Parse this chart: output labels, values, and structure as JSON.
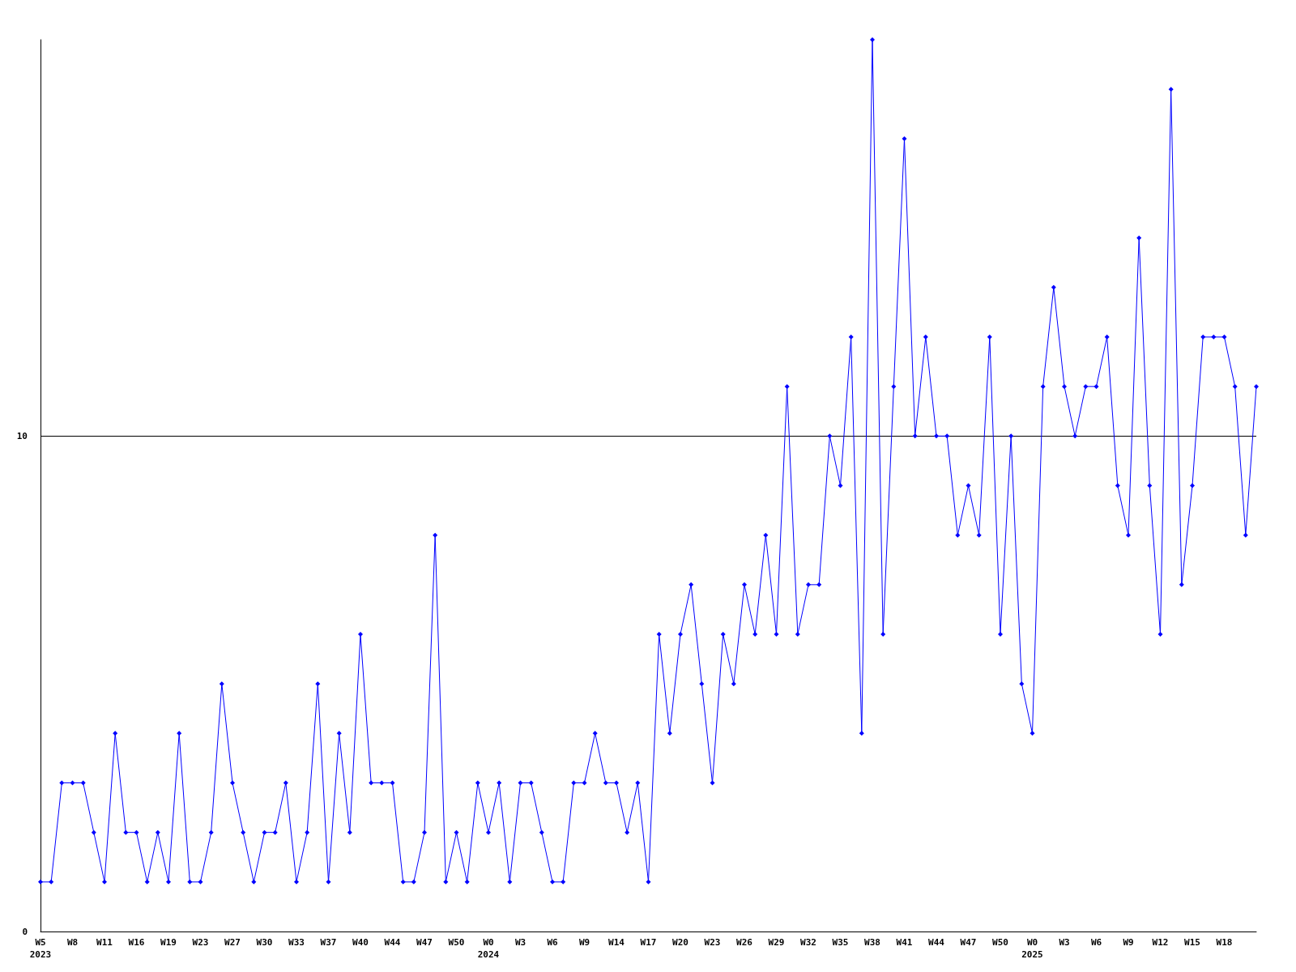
{
  "chart_data": {
    "type": "line",
    "categories": [
      "W5\n2023",
      null,
      null,
      "W8",
      null,
      null,
      "W11",
      null,
      null,
      "W16",
      null,
      null,
      "W19",
      null,
      null,
      "W23",
      null,
      null,
      "W27",
      null,
      null,
      "W30",
      null,
      null,
      "W33",
      null,
      null,
      "W37",
      null,
      null,
      "W40",
      null,
      null,
      "W44",
      null,
      null,
      "W47",
      null,
      null,
      "W50",
      null,
      null,
      "W0\n2024",
      null,
      null,
      "W3",
      null,
      null,
      "W6",
      null,
      null,
      "W9",
      null,
      null,
      "W14",
      null,
      null,
      "W17",
      null,
      null,
      "W20",
      null,
      null,
      "W23",
      null,
      null,
      "W26",
      null,
      null,
      "W29",
      null,
      null,
      "W32",
      null,
      null,
      "W35",
      null,
      null,
      "W38",
      null,
      null,
      "W41",
      null,
      null,
      "W44",
      null,
      null,
      "W47",
      null,
      null,
      "W50",
      null,
      null,
      "W0\n2025",
      null,
      null,
      "W3",
      null,
      null,
      "W6",
      null,
      null,
      "W9",
      null,
      null,
      "W12",
      null,
      null,
      "W15",
      null,
      null,
      "W18",
      null,
      null,
      null
    ],
    "series": [
      {
        "color": "#0000ff",
        "values": [
          1,
          1,
          3,
          3,
          3,
          2,
          1,
          4,
          2,
          2,
          1,
          2,
          1,
          4,
          1,
          1,
          2,
          5,
          3,
          2,
          1,
          2,
          2,
          3,
          1,
          2,
          5,
          1,
          4,
          2,
          6,
          3,
          3,
          3,
          1,
          1,
          2,
          8,
          1,
          2,
          1,
          3,
          2,
          3,
          1,
          3,
          3,
          2,
          1,
          1,
          3,
          3,
          4,
          3,
          3,
          2,
          3,
          1,
          6,
          4,
          6,
          7,
          5,
          3,
          6,
          5,
          7,
          6,
          8,
          6,
          11,
          6,
          7,
          7,
          10,
          9,
          12,
          4,
          18,
          6,
          11,
          16,
          10,
          12,
          10,
          10,
          8,
          9,
          8,
          12,
          6,
          10,
          5,
          4,
          11,
          13,
          11,
          10,
          11,
          11,
          12,
          9,
          8,
          14,
          9,
          6,
          17,
          7,
          9,
          12,
          12,
          12,
          11,
          8,
          11
        ]
      }
    ],
    "ylim": [
      0,
      18
    ],
    "yticks": [
      0,
      {
        "value": 10,
        "label": "10"
      }
    ],
    "grid": "y",
    "marker": "diamond",
    "line_style": "solid"
  }
}
